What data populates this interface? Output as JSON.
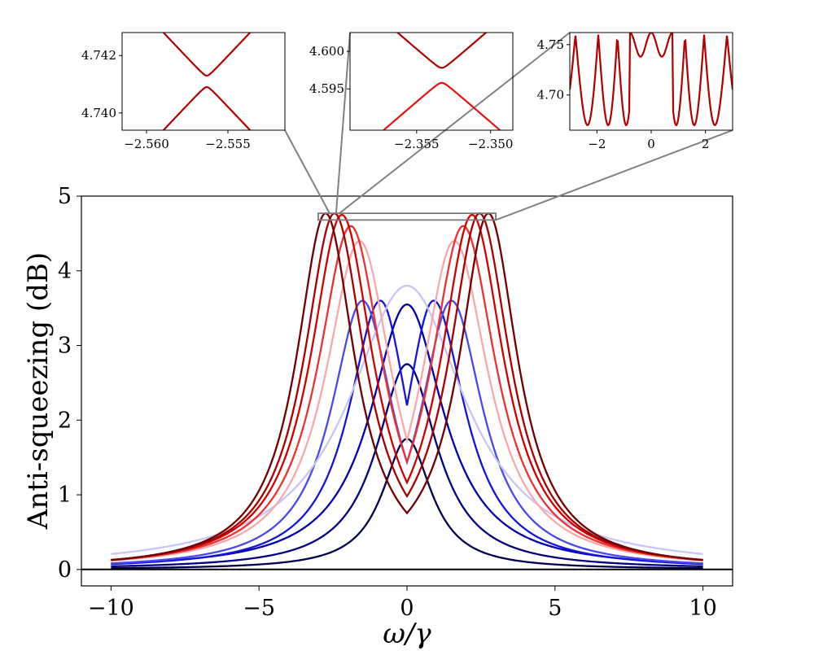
{
  "chart_data": [
    {
      "id": "main",
      "type": "line",
      "title": "",
      "xlabel": "ω/γ",
      "ylabel": "Anti-squeezing (dB)",
      "xlim": [
        -11,
        11
      ],
      "ylim": [
        -0.22,
        5.0
      ],
      "xticks": [
        -10,
        -5,
        0,
        5,
        10
      ],
      "yticks": [
        0,
        1,
        2,
        3,
        4,
        5
      ],
      "xtick_labels": [
        "−10",
        "−5",
        "0",
        "5",
        "10"
      ],
      "ytick_labels": [
        "0",
        "1",
        "2",
        "3",
        "4",
        "5"
      ],
      "x_range": [
        -10,
        10
      ],
      "baseline_y": 0,
      "zoom_box": {
        "x": [
          -3.0,
          3.0
        ],
        "y": [
          4.68,
          4.77
        ]
      },
      "series": [
        {
          "name": "s1",
          "color": "#00004d",
          "shape": "single",
          "peak": 1.75,
          "width": 1.0
        },
        {
          "name": "s2",
          "color": "#000080",
          "shape": "single",
          "peak": 2.75,
          "width": 1.25
        },
        {
          "name": "s3",
          "color": "#0000b0",
          "shape": "single",
          "peak": 3.55,
          "width": 1.5
        },
        {
          "name": "s4",
          "color": "#1515d8",
          "shape": "split",
          "dip": 3.25,
          "peak": 3.6,
          "pos": 0.9,
          "width": 1.3
        },
        {
          "name": "s5",
          "color": "#4848ee",
          "shape": "split",
          "dip": 3.35,
          "peak": 3.6,
          "pos": 1.5,
          "width": 1.3
        },
        {
          "name": "s6",
          "color": "#c6c6f8",
          "shape": "single",
          "peak": 3.8,
          "width": 2.4
        },
        {
          "name": "s7",
          "color": "#f8a8a8",
          "shape": "split",
          "dip": 4.0,
          "peak": 4.4,
          "pos": 1.6,
          "width": 1.4
        },
        {
          "name": "s8",
          "color": "#f03030",
          "shape": "split",
          "dip": 4.3,
          "peak": 4.6,
          "pos": 1.9,
          "width": 1.35
        },
        {
          "name": "s9",
          "color": "#d00000",
          "shape": "split",
          "dip": 4.5,
          "peak": 4.75,
          "pos": 2.2,
          "width": 1.3
        },
        {
          "name": "s10",
          "color": "#a80000",
          "shape": "split",
          "dip": 4.75,
          "peak": 4.77,
          "pos": 2.45,
          "width": 1.25
        },
        {
          "name": "s11",
          "color": "#700000",
          "shape": "split",
          "dip": 4.72,
          "peak": 4.77,
          "pos": 2.75,
          "width": 1.2
        }
      ]
    },
    {
      "id": "inset1",
      "type": "line",
      "xlim": [
        -2.5615,
        -2.5515
      ],
      "ylim": [
        4.7394,
        4.7428
      ],
      "xticks": [
        -2.56,
        -2.555
      ],
      "xtick_labels": [
        "−2.560",
        "−2.555"
      ],
      "yticks": [
        4.74,
        4.742
      ],
      "ytick_labels": [
        "4.740",
        "4.742"
      ],
      "series": [
        {
          "name": "upper",
          "color": "#b00000",
          "center": -2.5563,
          "level": 4.7413,
          "slope": 0.6,
          "gap": 0.0002
        },
        {
          "name": "lower",
          "color": "#b00000",
          "center": -2.5563,
          "level": 4.7409,
          "slope": -0.6,
          "gap": 0.0002
        }
      ]
    },
    {
      "id": "inset2",
      "type": "line",
      "xlim": [
        -2.3595,
        -2.3485
      ],
      "ylim": [
        4.5895,
        4.6025
      ],
      "xticks": [
        -2.355,
        -2.35
      ],
      "xtick_labels": [
        "−2.355",
        "−2.350"
      ],
      "yticks": [
        4.595,
        4.6
      ],
      "ytick_labels": [
        "4.595",
        "4.600"
      ],
      "series": [
        {
          "name": "upper",
          "color": "#b00000",
          "center": -2.3533,
          "level": 4.5978,
          "slope": 1.7,
          "gap": 0.0008
        },
        {
          "name": "lower",
          "color": "#e81010",
          "center": -2.3533,
          "level": 4.5958,
          "slope": -1.7,
          "gap": 0.0008
        }
      ]
    },
    {
      "id": "inset3",
      "type": "line",
      "xlim": [
        -3.0,
        3.0
      ],
      "ylim": [
        4.665,
        4.762
      ],
      "xticks": [
        -2,
        0,
        2
      ],
      "xtick_labels": [
        "−2",
        "0",
        "2"
      ],
      "yticks": [
        4.7,
        4.75
      ],
      "ytick_labels": [
        "4.70",
        "4.75"
      ],
      "series": [
        {
          "name": "oscillating",
          "color": "#b00000",
          "top": 4.76,
          "dip": 4.74
        }
      ]
    }
  ]
}
